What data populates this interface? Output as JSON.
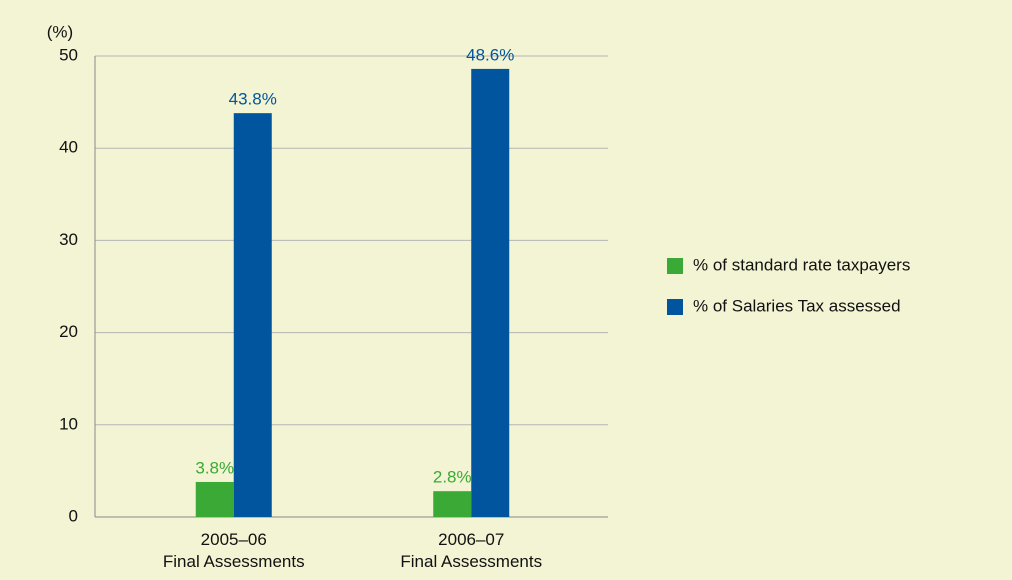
{
  "chart_data": {
    "type": "bar",
    "y_label": "(%)",
    "categories": [
      "2005–06\nFinal Assessments",
      "2006–07\nFinal Assessments"
    ],
    "series": [
      {
        "name": "% of standard rate taxpayers",
        "color": "#3aa935",
        "values": [
          3.8,
          2.8
        ],
        "value_labels": [
          "3.8%",
          "2.8%"
        ]
      },
      {
        "name": "% of Salaries Tax assessed",
        "color": "#00559e",
        "values": [
          43.8,
          48.6
        ],
        "value_labels": [
          "43.8%",
          "48.6%"
        ]
      }
    ],
    "ylim": [
      0,
      50
    ],
    "yticks": [
      0,
      10,
      20,
      30,
      40,
      50
    ],
    "grid": true,
    "legend": "right"
  }
}
